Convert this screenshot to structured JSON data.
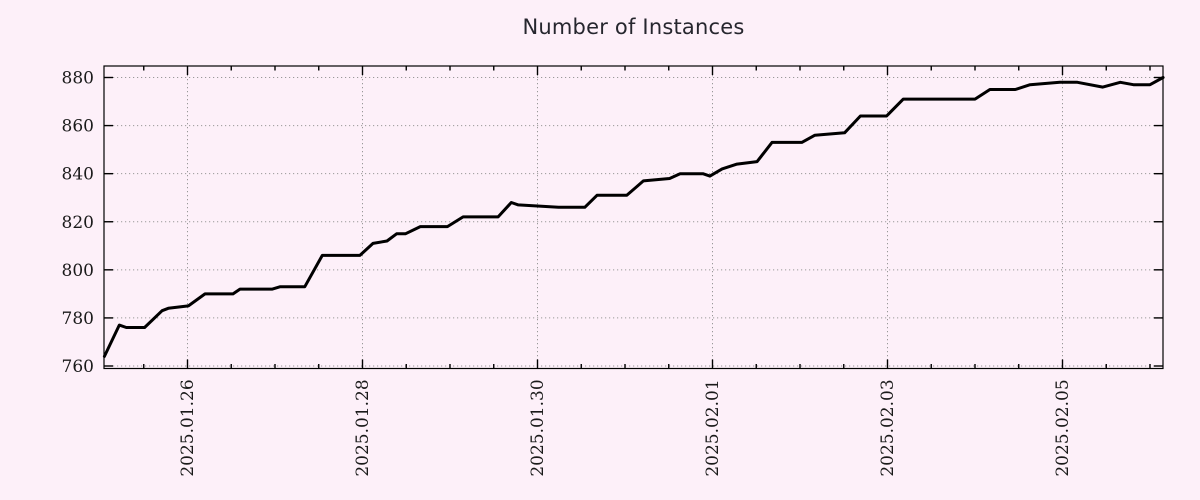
{
  "chart_data": {
    "type": "line",
    "title": "Number of Instances",
    "xlabel": "",
    "ylabel": "",
    "legend": "none",
    "grid": "dotted",
    "y_ticks": [
      760,
      780,
      800,
      820,
      840,
      860,
      880
    ],
    "ylim": [
      759,
      884.5
    ],
    "x_ticks": [
      {
        "label": "2025.01.26",
        "day": 1
      },
      {
        "label": "2025.01.28",
        "day": 3
      },
      {
        "label": "2025.01.30",
        "day": 5
      },
      {
        "label": "2025.02.01",
        "day": 7
      },
      {
        "label": "2025.02.03",
        "day": 9
      },
      {
        "label": "2025.02.05",
        "day": 11
      }
    ],
    "x_minor_tick_interval_days": 0.5,
    "x_epoch": "2025-01-25 00:00",
    "x_range_days": [
      0.05,
      12.15
    ],
    "series": [
      {
        "name": "instances",
        "color": "#000000",
        "points_days_value": [
          [
            0.05,
            764
          ],
          [
            0.22,
            777
          ],
          [
            0.3,
            776
          ],
          [
            0.51,
            776
          ],
          [
            0.71,
            783
          ],
          [
            0.78,
            784
          ],
          [
            1.01,
            785
          ],
          [
            1.2,
            790
          ],
          [
            1.52,
            790
          ],
          [
            1.6,
            792
          ],
          [
            1.97,
            792
          ],
          [
            2.06,
            793
          ],
          [
            2.34,
            793
          ],
          [
            2.54,
            806
          ],
          [
            2.97,
            806
          ],
          [
            3.12,
            811
          ],
          [
            3.28,
            812
          ],
          [
            3.39,
            815
          ],
          [
            3.49,
            815
          ],
          [
            3.66,
            818
          ],
          [
            3.97,
            818
          ],
          [
            4.15,
            822
          ],
          [
            4.55,
            822
          ],
          [
            4.7,
            828
          ],
          [
            4.78,
            827
          ],
          [
            5.24,
            826
          ],
          [
            5.54,
            826
          ],
          [
            5.68,
            831
          ],
          [
            6.02,
            831
          ],
          [
            6.21,
            837
          ],
          [
            6.51,
            838
          ],
          [
            6.63,
            840
          ],
          [
            6.89,
            840
          ],
          [
            6.97,
            839
          ],
          [
            7.11,
            842
          ],
          [
            7.28,
            844
          ],
          [
            7.51,
            845
          ],
          [
            7.68,
            853
          ],
          [
            8.02,
            853
          ],
          [
            8.17,
            856
          ],
          [
            8.51,
            857
          ],
          [
            8.69,
            864
          ],
          [
            8.99,
            864
          ],
          [
            9.18,
            871
          ],
          [
            10.0,
            871
          ],
          [
            10.17,
            875
          ],
          [
            10.46,
            875
          ],
          [
            10.63,
            877
          ],
          [
            10.97,
            878
          ],
          [
            11.17,
            878
          ],
          [
            11.46,
            876
          ],
          [
            11.66,
            878
          ],
          [
            11.81,
            877
          ],
          [
            12.0,
            877
          ],
          [
            12.15,
            880
          ]
        ]
      }
    ]
  },
  "style": {
    "background_color": "#fdf0f9",
    "grid_color": "#999999",
    "axis_color": "#000000",
    "text_color": "#1a1a1a",
    "title_color": "#26262e",
    "line_color": "#000000"
  }
}
